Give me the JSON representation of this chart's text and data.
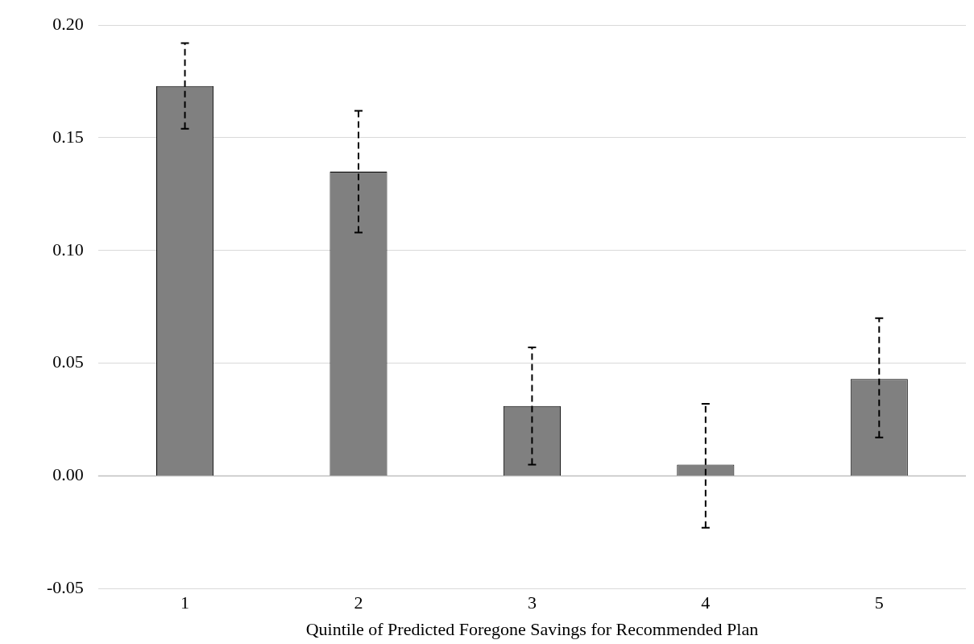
{
  "chart_data": {
    "type": "bar",
    "xlabel": "Quintile of Predicted Foregone Savings for Recommended Plan",
    "categories": [
      "1",
      "2",
      "3",
      "4",
      "5"
    ],
    "values": [
      0.173,
      0.135,
      0.031,
      0.005,
      0.043
    ],
    "errors": [
      [
        0.154,
        0.192
      ],
      [
        0.108,
        0.162
      ],
      [
        0.005,
        0.057
      ],
      [
        -0.023,
        0.032
      ],
      [
        0.017,
        0.07
      ]
    ],
    "color": "#808080",
    "ylim": [
      -0.05,
      0.2
    ],
    "yticks": [
      {
        "value": -0.05,
        "label": "-0.05"
      },
      {
        "value": 0,
        "label": "0.00"
      },
      {
        "value": 0.05,
        "label": "0.05"
      },
      {
        "value": 0.1,
        "label": "0.10"
      },
      {
        "value": 0.15,
        "label": "0.15"
      },
      {
        "value": 0.2,
        "label": "0.20"
      }
    ],
    "grid": "y",
    "legend": false
  }
}
